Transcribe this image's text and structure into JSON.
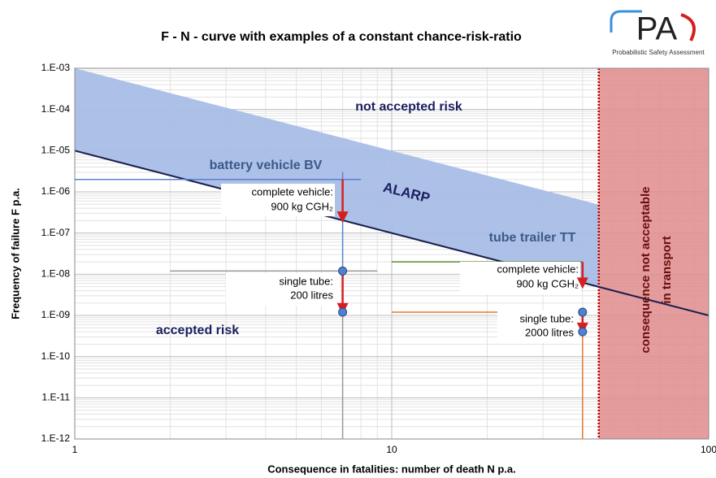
{
  "chart_data": {
    "type": "line",
    "title": "F - N - curve with examples of a constant chance-risk-ratio",
    "xlabel": "Consequence in fatalities: number of death N   p.a.",
    "ylabel": "Frequency of failure  F   p.a.",
    "logo": {
      "text": "PA",
      "subtitle": "Probabilistic Safety Assessment"
    },
    "log_x": true,
    "log_y": true,
    "grid": true,
    "xlim": [
      1,
      100
    ],
    "xticks": [
      1,
      10,
      100
    ],
    "ylim": [
      1e-12,
      0.001
    ],
    "yticks": [
      {
        "value": 1e-12,
        "label": "1.E-12"
      },
      {
        "value": 1e-11,
        "label": "1.E-11"
      },
      {
        "value": 1e-10,
        "label": "1.E-10"
      },
      {
        "value": 1e-09,
        "label": "1.E-09"
      },
      {
        "value": 1e-08,
        "label": "1.E-08"
      },
      {
        "value": 1e-07,
        "label": "1.E-07"
      },
      {
        "value": 1e-06,
        "label": "1.E-06"
      },
      {
        "value": 1e-05,
        "label": "1.E-05"
      },
      {
        "value": 0.0001,
        "label": "1.E-04"
      },
      {
        "value": 0.001,
        "label": "1.E-03"
      }
    ],
    "band_color": "#a9bde6",
    "series": [
      {
        "color": "#a9bde6",
        "x": [
          1,
          45
        ],
        "values": [
          0.001,
          4.9e-07
        ]
      },
      {
        "color": "#1a1f4f",
        "x": [
          1,
          100
        ],
        "values": [
          1e-05,
          1e-09
        ]
      }
    ],
    "limit_x": 45,
    "limit_color": "#e08b8b",
    "hlines": [
      {
        "y": 2e-06,
        "x": [
          1,
          8
        ],
        "color": "#5b7fd0"
      },
      {
        "y": 1.2e-08,
        "x": [
          2,
          9
        ],
        "color": "#999999"
      },
      {
        "y": 2e-08,
        "x": [
          10,
          40
        ],
        "color": "#5a8a30"
      },
      {
        "y": 1.2e-09,
        "x": [
          10,
          40
        ],
        "color": "#e07a30"
      }
    ],
    "vlines": [
      {
        "x": 7,
        "y": [
          1.2e-08,
          3e-06
        ],
        "color": "#5b7fd0"
      },
      {
        "x": 7,
        "y": [
          1e-12,
          1.2e-08
        ],
        "color": "#999999"
      },
      {
        "x": 40,
        "y": [
          5e-09,
          2e-08
        ],
        "color": "#5a8a30"
      },
      {
        "x": 40,
        "y": [
          1e-12,
          1.2e-09
        ],
        "color": "#e07a30"
      }
    ],
    "arrows": [
      {
        "x": 7,
        "from": 2e-06,
        "to": 2e-07
      },
      {
        "x": 7,
        "from": 1.2e-08,
        "to": 1.2e-09
      },
      {
        "x": 40,
        "from": 2e-08,
        "to": 5e-09
      },
      {
        "x": 40,
        "from": 1.2e-09,
        "to": 4e-10
      }
    ],
    "arrow_color": "#d42020",
    "markers": {
      "color": "#4f81d0",
      "x": [
        7,
        7,
        40,
        40
      ],
      "values": [
        1.2e-08,
        1.2e-09,
        1.2e-09,
        4e-10
      ]
    },
    "annotations": [
      "not accepted risk",
      "accepted risk",
      "ALARP",
      "battery vehicle  BV",
      "tube trailer TT",
      "complete vehicle:",
      "900 kg CGH₂",
      "single tube:",
      "200 litres",
      "complete vehicle:",
      "900 kg CGH₂",
      "single tube:",
      "2000 litres",
      "consequence not acceptable",
      "in transport"
    ]
  }
}
